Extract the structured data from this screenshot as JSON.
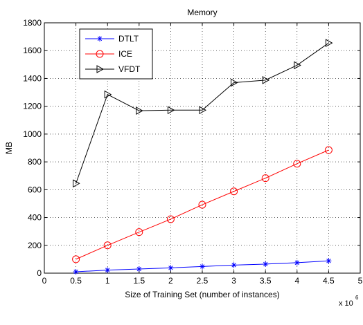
{
  "chart_data": {
    "type": "line",
    "title": "Memory",
    "xlabel": "Size of Training Set (number of instances)",
    "ylabel": "MB",
    "x_multiplier_label": "x 10",
    "x_multiplier_exponent": "6",
    "xlim": [
      0,
      5
    ],
    "ylim": [
      0,
      1800
    ],
    "x_ticks": [
      0,
      0.5,
      1,
      1.5,
      2,
      2.5,
      3,
      3.5,
      4,
      4.5,
      5
    ],
    "x_tick_labels": [
      "0",
      "0.5",
      "1",
      "1.5",
      "2",
      "2.5",
      "3",
      "3.5",
      "4",
      "4.5",
      "5"
    ],
    "y_ticks": [
      0,
      200,
      400,
      600,
      800,
      1000,
      1200,
      1400,
      1600,
      1800
    ],
    "y_tick_labels": [
      "0",
      "200",
      "400",
      "600",
      "800",
      "1000",
      "1200",
      "1400",
      "1600",
      "1800"
    ],
    "grid": true,
    "legend_position": "top-left",
    "x": [
      0.5,
      1,
      1.5,
      2,
      2.5,
      3,
      3.5,
      4,
      4.5
    ],
    "series": [
      {
        "name": "DTLT",
        "color": "#0000ff",
        "marker": "asterisk",
        "values": [
          10,
          22,
          30,
          38,
          48,
          58,
          65,
          75,
          88
        ]
      },
      {
        "name": "ICE",
        "color": "#ff0000",
        "marker": "circle",
        "values": [
          100,
          200,
          295,
          388,
          492,
          588,
          683,
          787,
          885
        ]
      },
      {
        "name": "VFDT",
        "color": "#000000",
        "marker": "triangle-right",
        "values": [
          645,
          1285,
          1168,
          1172,
          1172,
          1370,
          1388,
          1495,
          1655
        ]
      }
    ]
  }
}
